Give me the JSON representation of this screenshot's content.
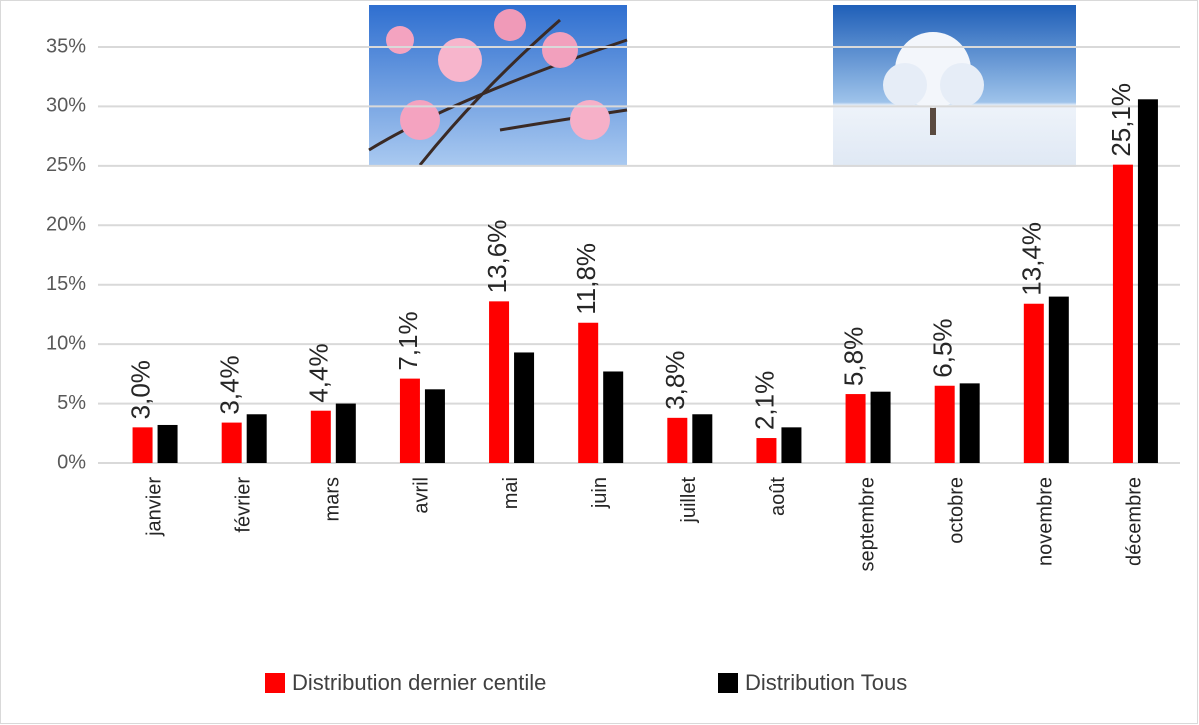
{
  "chart_data": {
    "type": "bar",
    "categories": [
      "janvier",
      "février",
      "mars",
      "avril",
      "mai",
      "juin",
      "juillet",
      "août",
      "septembre",
      "octobre",
      "novembre",
      "décembre"
    ],
    "series": [
      {
        "name": "Distribution dernier centile",
        "color": "#ff0000",
        "values": [
          3.0,
          3.4,
          4.4,
          7.1,
          13.6,
          11.8,
          3.8,
          2.1,
          5.8,
          6.5,
          13.4,
          25.1
        ],
        "value_labels": [
          "3,0%",
          "3,4%",
          "4,4%",
          "7,1%",
          "13,6%",
          "11,8%",
          "3,8%",
          "2,1%",
          "5,8%",
          "6,5%",
          "13,4%",
          "25,1%"
        ]
      },
      {
        "name": "Distribution Tous",
        "color": "#000000",
        "values": [
          3.2,
          4.1,
          5.0,
          6.2,
          9.3,
          7.7,
          4.1,
          3.0,
          6.0,
          6.7,
          14.0,
          30.6
        ]
      }
    ],
    "ylim": [
      0,
      35
    ],
    "yticks": [
      {
        "value": 0,
        "label": "0%"
      },
      {
        "value": 5,
        "label": "5%"
      },
      {
        "value": 10,
        "label": "10%"
      },
      {
        "value": 15,
        "label": "15%"
      },
      {
        "value": 20,
        "label": "20%"
      },
      {
        "value": 25,
        "label": "25%"
      },
      {
        "value": 30,
        "label": "30%"
      },
      {
        "value": 35,
        "label": "35%"
      }
    ],
    "grid": true
  }
}
